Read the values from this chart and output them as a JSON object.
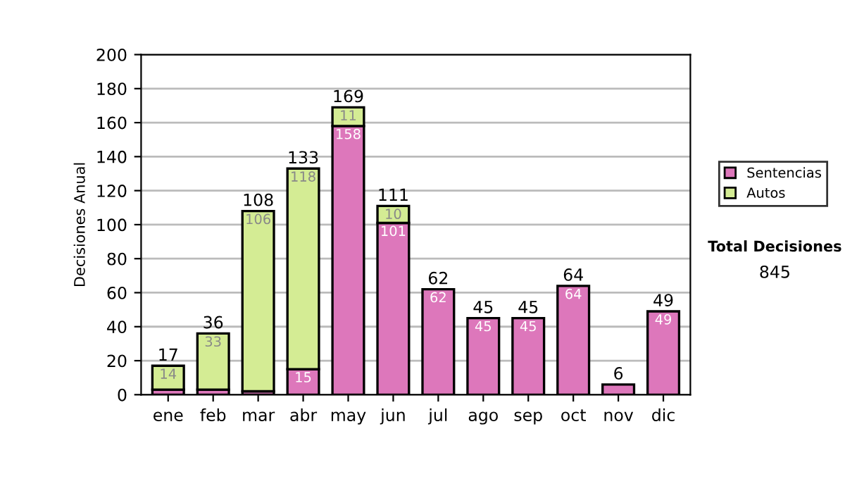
{
  "chart_data": {
    "type": "bar",
    "stacked": true,
    "ylabel": "Decisiones Anual",
    "categories": [
      "ene",
      "feb",
      "mar",
      "abr",
      "may",
      "jun",
      "jul",
      "ago",
      "sep",
      "oct",
      "nov",
      "dic"
    ],
    "series": [
      {
        "name": "Sentencias",
        "color": "#dd77bb",
        "values": [
          3,
          3,
          2,
          15,
          158,
          101,
          62,
          45,
          45,
          64,
          6,
          49
        ],
        "value_labels": [
          null,
          null,
          null,
          "15",
          "158",
          "101",
          "62",
          "45",
          "45",
          "64",
          null,
          "49"
        ]
      },
      {
        "name": "Autos",
        "color": "#d4ec94",
        "values": [
          14,
          33,
          106,
          118,
          11,
          10,
          null,
          null,
          null,
          null,
          null,
          null
        ],
        "value_labels": [
          "14",
          "33",
          "106",
          "118",
          "11",
          "10",
          null,
          null,
          null,
          null,
          null,
          null
        ]
      }
    ],
    "totals": [
      "17",
      "36",
      "108",
      "133",
      "169",
      "111",
      "62",
      "45",
      "45",
      "64",
      "6",
      "49"
    ],
    "ylim": [
      0,
      200
    ],
    "yticks": [
      0,
      20,
      40,
      60,
      80,
      100,
      120,
      140,
      160,
      180,
      200
    ],
    "grid": "y",
    "legend": "right",
    "annotations": [
      "Total Decisiones",
      "845"
    ]
  }
}
